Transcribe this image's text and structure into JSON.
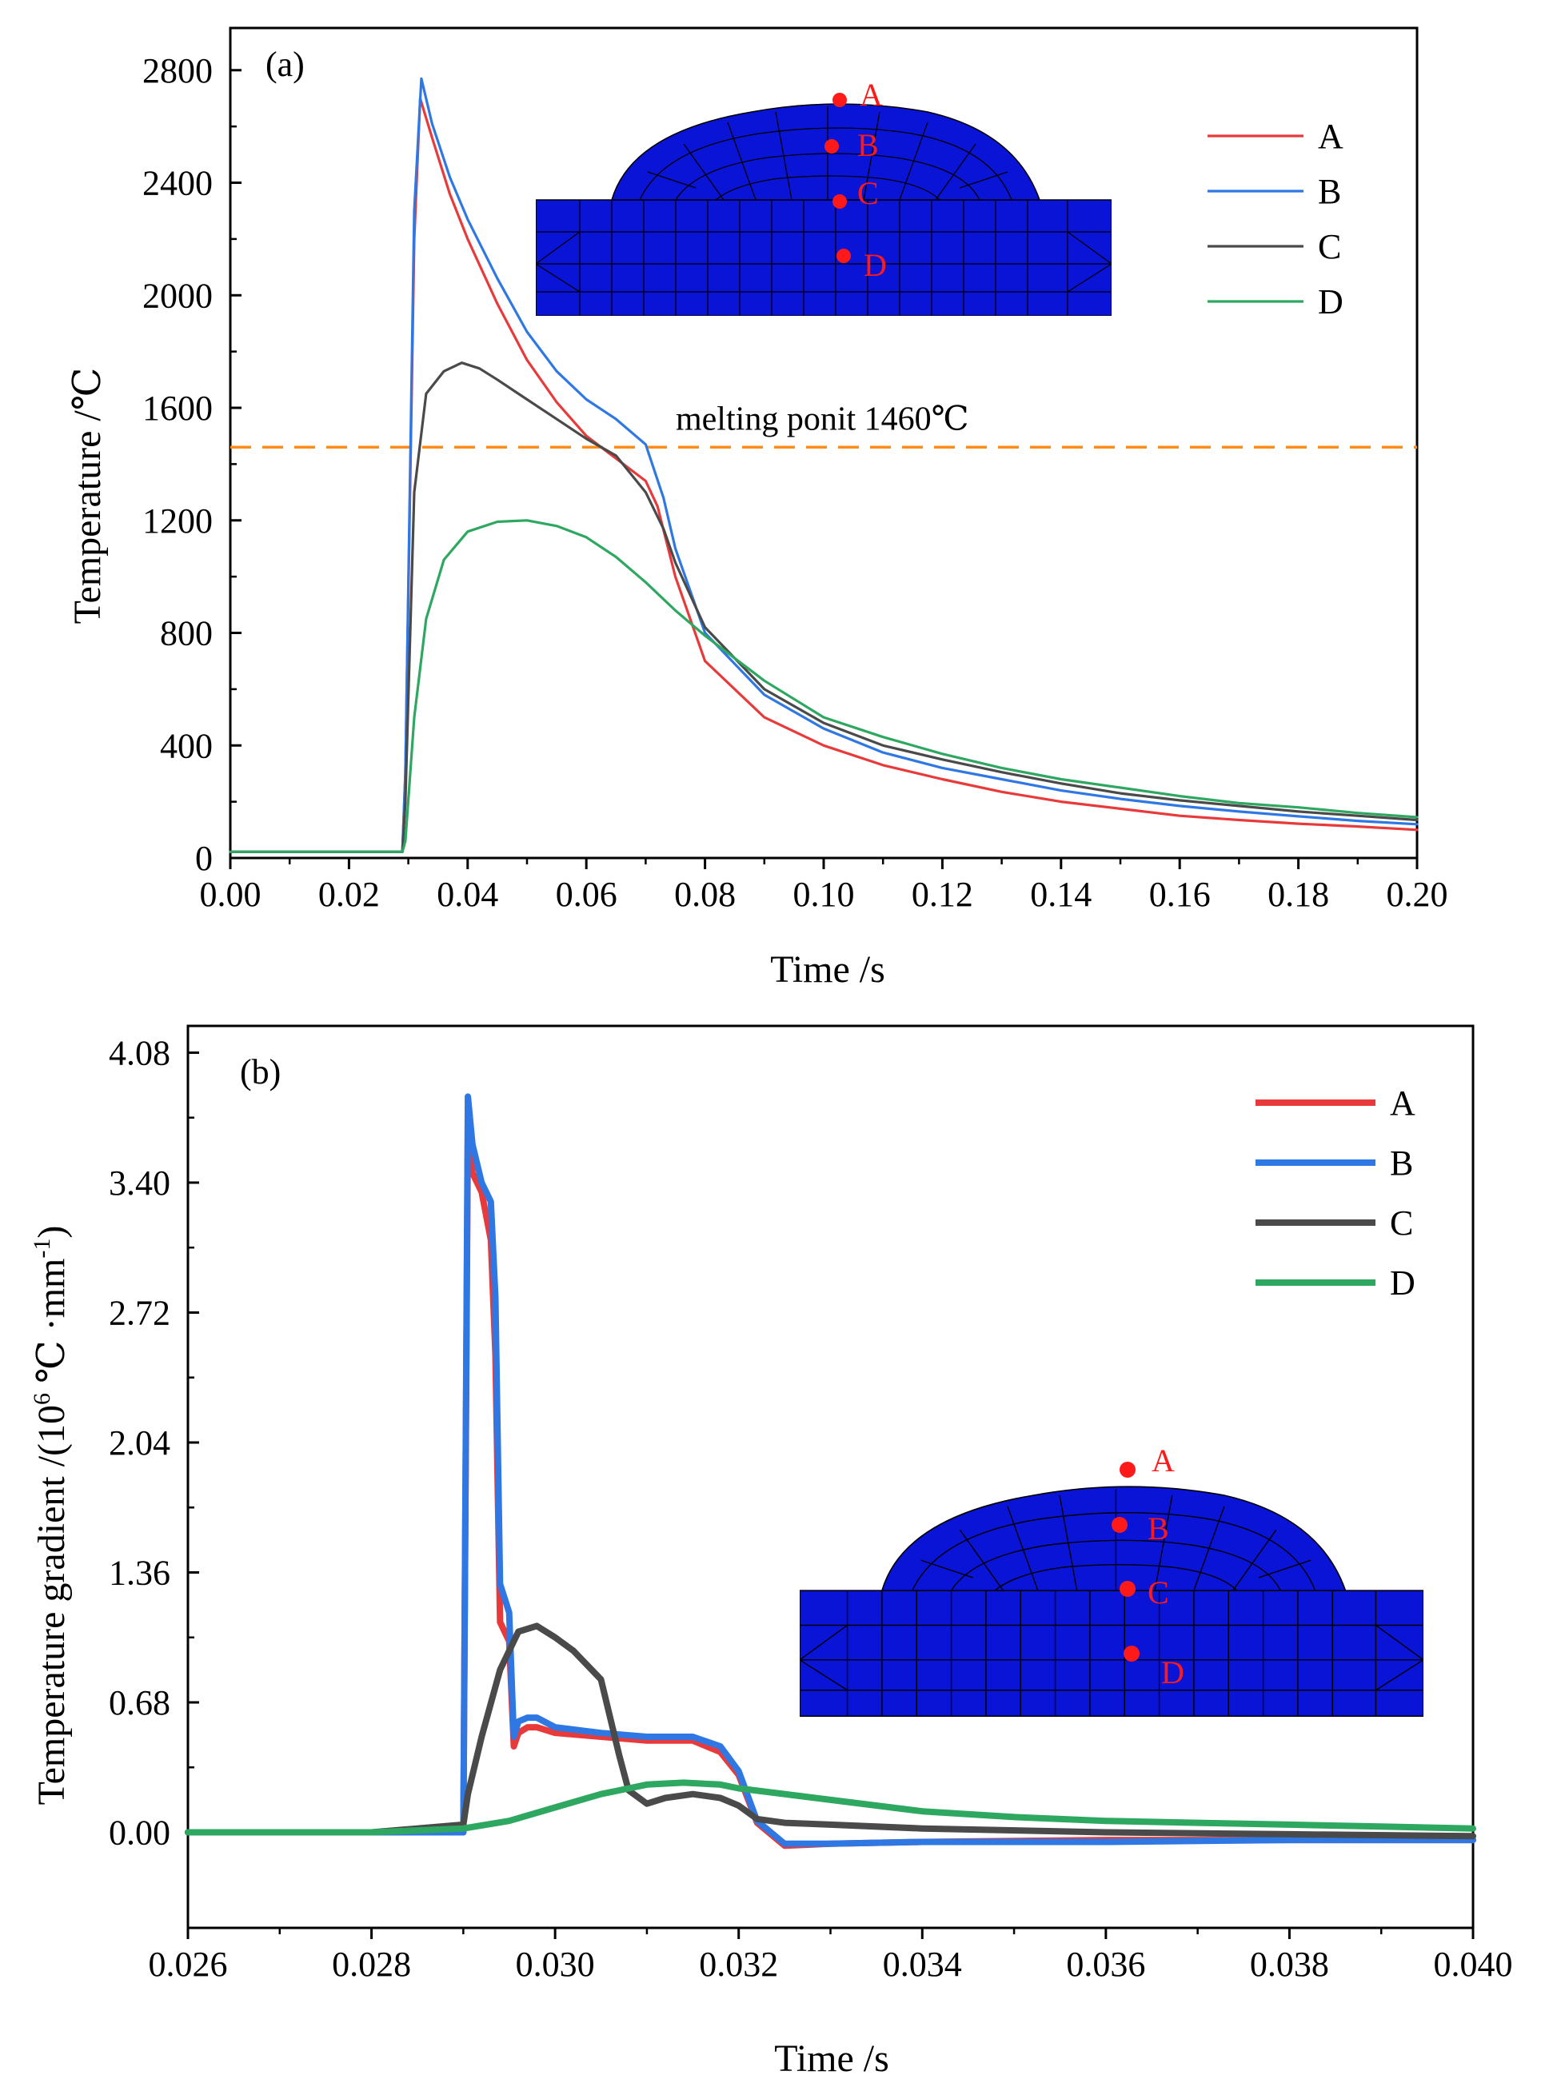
{
  "chart_data": [
    {
      "type": "line",
      "panel_label": "(a)",
      "xlabel": "Time /s",
      "ylabel": "Temperature /℃",
      "xlim": [
        0,
        0.2
      ],
      "ylim": [
        0,
        2950
      ],
      "xticks": [
        "0.00",
        "0.02",
        "0.04",
        "0.06",
        "0.08",
        "0.10",
        "0.12",
        "0.14",
        "0.16",
        "0.18",
        "0.20"
      ],
      "yticks": [
        "0",
        "400",
        "800",
        "1200",
        "1600",
        "2000",
        "2400",
        "2800"
      ],
      "legend_position": "top-right",
      "reference_line": {
        "y": 1460,
        "label": "melting ponit 1460℃",
        "color": "#ff8c1a"
      },
      "series": [
        {
          "name": "A",
          "color": "#e83a3a",
          "x": [
            0,
            0.029,
            0.0295,
            0.031,
            0.032,
            0.034,
            0.037,
            0.04,
            0.045,
            0.05,
            0.055,
            0.06,
            0.065,
            0.07,
            0.072,
            0.075,
            0.08,
            0.09,
            0.1,
            0.11,
            0.12,
            0.13,
            0.14,
            0.15,
            0.16,
            0.17,
            0.18,
            0.19,
            0.2
          ],
          "y": [
            22,
            22,
            300,
            2200,
            2700,
            2560,
            2360,
            2200,
            1970,
            1770,
            1620,
            1500,
            1420,
            1340,
            1250,
            1000,
            700,
            500,
            400,
            330,
            280,
            235,
            200,
            175,
            150,
            135,
            122,
            112,
            100
          ]
        },
        {
          "name": "B",
          "color": "#2f78e3",
          "x": [
            0,
            0.029,
            0.0295,
            0.031,
            0.0322,
            0.034,
            0.037,
            0.04,
            0.045,
            0.05,
            0.055,
            0.06,
            0.065,
            0.07,
            0.073,
            0.075,
            0.08,
            0.09,
            0.1,
            0.11,
            0.12,
            0.13,
            0.14,
            0.15,
            0.16,
            0.17,
            0.18,
            0.19,
            0.2
          ],
          "y": [
            22,
            22,
            300,
            2300,
            2770,
            2610,
            2420,
            2270,
            2060,
            1870,
            1730,
            1630,
            1560,
            1470,
            1280,
            1100,
            800,
            580,
            460,
            375,
            320,
            280,
            240,
            210,
            185,
            165,
            148,
            132,
            120
          ]
        },
        {
          "name": "C",
          "color": "#4a4a4a",
          "x": [
            0,
            0.029,
            0.0295,
            0.031,
            0.033,
            0.036,
            0.039,
            0.042,
            0.045,
            0.05,
            0.055,
            0.06,
            0.065,
            0.07,
            0.073,
            0.075,
            0.08,
            0.09,
            0.1,
            0.11,
            0.12,
            0.13,
            0.14,
            0.15,
            0.16,
            0.17,
            0.18,
            0.19,
            0.2
          ],
          "y": [
            22,
            22,
            200,
            1300,
            1650,
            1730,
            1760,
            1740,
            1700,
            1630,
            1560,
            1490,
            1430,
            1300,
            1170,
            1050,
            820,
            600,
            480,
            400,
            350,
            305,
            265,
            230,
            205,
            185,
            165,
            150,
            135
          ]
        },
        {
          "name": "D",
          "color": "#2ea860",
          "x": [
            0,
            0.029,
            0.0295,
            0.031,
            0.033,
            0.036,
            0.04,
            0.045,
            0.05,
            0.055,
            0.06,
            0.065,
            0.07,
            0.075,
            0.08,
            0.09,
            0.1,
            0.11,
            0.12,
            0.13,
            0.14,
            0.15,
            0.16,
            0.17,
            0.18,
            0.19,
            0.2
          ],
          "y": [
            22,
            22,
            60,
            500,
            850,
            1060,
            1160,
            1195,
            1200,
            1180,
            1140,
            1070,
            980,
            880,
            790,
            630,
            500,
            430,
            370,
            320,
            280,
            250,
            220,
            195,
            180,
            160,
            145
          ]
        }
      ]
    },
    {
      "type": "line",
      "panel_label": "(b)",
      "xlabel": "Time /s",
      "ylabel": "Temperature gradient /(10",
      "ylabel_sup1": "6",
      "ylabel_mid": " ℃ ·mm",
      "ylabel_sup2": "-1",
      "ylabel_end": ")",
      "xlim": [
        0.026,
        0.04
      ],
      "ylim": [
        -0.5,
        4.22
      ],
      "xticks": [
        "0.026",
        "0.028",
        "0.030",
        "0.032",
        "0.034",
        "0.036",
        "0.038",
        "0.040"
      ],
      "yticks": [
        "0.00",
        "0.68",
        "1.36",
        "2.04",
        "2.72",
        "3.40",
        "4.08"
      ],
      "legend_position": "top-right",
      "series": [
        {
          "name": "A",
          "color": "#e83a3a",
          "x": [
            0.026,
            0.029,
            0.02905,
            0.0291,
            0.0292,
            0.0293,
            0.02935,
            0.0294,
            0.0295,
            0.02955,
            0.0296,
            0.0297,
            0.0298,
            0.03,
            0.0305,
            0.031,
            0.0315,
            0.0318,
            0.032,
            0.0322,
            0.0325,
            0.033,
            0.034,
            0.036,
            0.038,
            0.04
          ],
          "y": [
            0,
            0,
            3.7,
            3.45,
            3.35,
            3.1,
            2.5,
            1.1,
            1.0,
            0.45,
            0.52,
            0.55,
            0.55,
            0.52,
            0.5,
            0.48,
            0.48,
            0.42,
            0.3,
            0.05,
            -0.07,
            -0.06,
            -0.05,
            -0.04,
            -0.04,
            -0.04
          ]
        },
        {
          "name": "B",
          "color": "#2f78e3",
          "x": [
            0.026,
            0.029,
            0.02905,
            0.0291,
            0.0292,
            0.0293,
            0.02935,
            0.0294,
            0.0295,
            0.02955,
            0.0296,
            0.0297,
            0.0298,
            0.03,
            0.0305,
            0.031,
            0.0315,
            0.0318,
            0.032,
            0.0322,
            0.0325,
            0.033,
            0.034,
            0.036,
            0.038,
            0.04
          ],
          "y": [
            0,
            0,
            3.85,
            3.6,
            3.4,
            3.3,
            2.8,
            1.3,
            1.15,
            0.5,
            0.58,
            0.6,
            0.6,
            0.55,
            0.52,
            0.5,
            0.5,
            0.45,
            0.32,
            0.06,
            -0.06,
            -0.06,
            -0.05,
            -0.05,
            -0.04,
            -0.04
          ]
        },
        {
          "name": "C",
          "color": "#4a4a4a",
          "x": [
            0.026,
            0.028,
            0.029,
            0.02905,
            0.0292,
            0.0294,
            0.0296,
            0.0298,
            0.03,
            0.0302,
            0.0305,
            0.0306,
            0.0307,
            0.0308,
            0.031,
            0.0312,
            0.0315,
            0.0318,
            0.032,
            0.0322,
            0.0325,
            0.033,
            0.034,
            0.036,
            0.038,
            0.04
          ],
          "y": [
            0,
            0,
            0.04,
            0.2,
            0.5,
            0.85,
            1.05,
            1.08,
            1.02,
            0.95,
            0.8,
            0.6,
            0.4,
            0.22,
            0.15,
            0.18,
            0.2,
            0.18,
            0.14,
            0.07,
            0.05,
            0.04,
            0.02,
            0.0,
            -0.01,
            -0.02
          ]
        },
        {
          "name": "D",
          "color": "#2ea860",
          "x": [
            0.026,
            0.028,
            0.029,
            0.0295,
            0.03,
            0.0305,
            0.031,
            0.0314,
            0.0318,
            0.032,
            0.033,
            0.034,
            0.035,
            0.036,
            0.037,
            0.038,
            0.039,
            0.04
          ],
          "y": [
            0,
            0,
            0.02,
            0.06,
            0.13,
            0.2,
            0.25,
            0.26,
            0.25,
            0.23,
            0.17,
            0.11,
            0.08,
            0.06,
            0.05,
            0.04,
            0.03,
            0.02
          ]
        }
      ]
    }
  ],
  "inset": {
    "labels": [
      "A",
      "B",
      "C",
      "D"
    ],
    "mesh_color": "#0a14d6",
    "marker_color": "#ff1a1a"
  }
}
